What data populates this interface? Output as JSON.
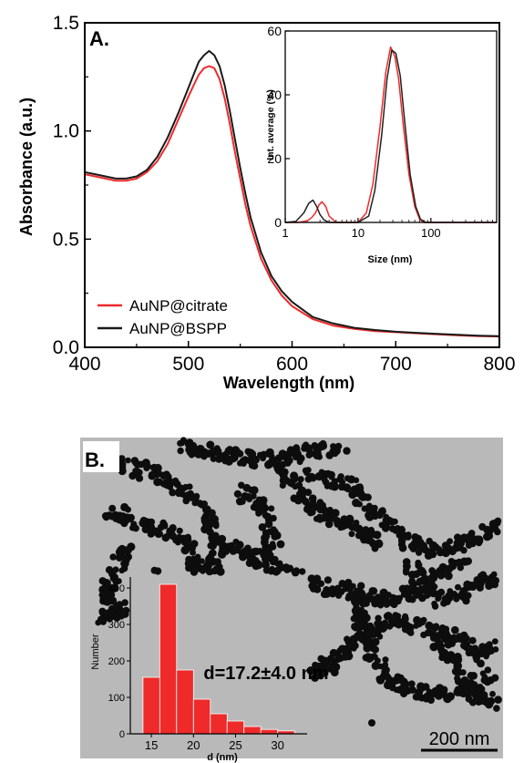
{
  "chart_data": [
    {
      "panel": "A.",
      "type": "line",
      "xlabel": "Wavelength (nm)",
      "ylabel": "Absorbance (a.u.)",
      "xlim": [
        400,
        800
      ],
      "ylim": [
        0,
        1.5
      ],
      "xticks": [
        "400",
        "500",
        "600",
        "700",
        "800"
      ],
      "yticks": [
        "0.0",
        "0.5",
        "1.0",
        "1.5"
      ],
      "legend_position": "bottom-left",
      "series": [
        {
          "name": "AuNP@citrate",
          "color": "#ee2a2a",
          "x": [
            400,
            410,
            420,
            430,
            440,
            450,
            460,
            470,
            480,
            490,
            500,
            505,
            510,
            515,
            520,
            525,
            530,
            535,
            540,
            545,
            550,
            555,
            560,
            570,
            580,
            590,
            600,
            620,
            640,
            660,
            680,
            700,
            720,
            740,
            760,
            780,
            800
          ],
          "y": [
            0.8,
            0.79,
            0.78,
            0.77,
            0.77,
            0.78,
            0.81,
            0.86,
            0.94,
            1.05,
            1.16,
            1.21,
            1.26,
            1.29,
            1.3,
            1.29,
            1.24,
            1.15,
            1.03,
            0.9,
            0.78,
            0.66,
            0.56,
            0.41,
            0.31,
            0.24,
            0.19,
            0.13,
            0.1,
            0.085,
            0.075,
            0.07,
            0.065,
            0.06,
            0.055,
            0.052,
            0.05
          ]
        },
        {
          "name": "AuNP@BSPP",
          "color": "#1a1a1a",
          "x": [
            400,
            410,
            420,
            430,
            440,
            450,
            460,
            470,
            480,
            490,
            500,
            505,
            510,
            515,
            520,
            525,
            530,
            535,
            540,
            545,
            550,
            555,
            560,
            570,
            580,
            590,
            600,
            620,
            640,
            660,
            680,
            700,
            720,
            740,
            760,
            780,
            800
          ],
          "y": [
            0.81,
            0.8,
            0.79,
            0.78,
            0.78,
            0.79,
            0.82,
            0.88,
            0.97,
            1.08,
            1.2,
            1.26,
            1.32,
            1.35,
            1.37,
            1.35,
            1.3,
            1.21,
            1.09,
            0.96,
            0.83,
            0.71,
            0.6,
            0.44,
            0.33,
            0.26,
            0.21,
            0.14,
            0.11,
            0.09,
            0.08,
            0.072,
            0.067,
            0.062,
            0.058,
            0.054,
            0.052
          ]
        }
      ]
    },
    {
      "type": "line",
      "inset_of": "A.",
      "xlabel": "Size (nm)",
      "ylabel": "Int. average (%)",
      "x_scale": "log",
      "xlim": [
        1,
        800
      ],
      "ylim": [
        0,
        60
      ],
      "xticks": [
        "1",
        "10",
        "100"
      ],
      "yticks": [
        "0",
        "20",
        "40",
        "60"
      ],
      "series": [
        {
          "color": "#ee2a2a",
          "x": [
            1,
            1.5,
            2,
            2.3,
            2.6,
            2.9,
            3.2,
            3.6,
            4,
            5,
            7,
            10,
            13,
            16,
            20,
            24,
            28,
            32,
            36,
            42,
            50,
            60,
            70,
            80,
            100,
            800
          ],
          "y": [
            0,
            0,
            0.5,
            1.5,
            3,
            5.5,
            6.5,
            5,
            2,
            0,
            0,
            0,
            3,
            12,
            30,
            47,
            55,
            52,
            45,
            30,
            15,
            5,
            1,
            0,
            0,
            0
          ]
        },
        {
          "color": "#222222",
          "x": [
            1,
            1.4,
            1.8,
            2.1,
            2.4,
            2.7,
            3.0,
            3.4,
            4,
            5,
            7,
            10,
            14,
            17,
            21,
            25,
            29,
            33,
            38,
            44,
            52,
            62,
            72,
            85,
            100,
            800
          ],
          "y": [
            0,
            0.3,
            3,
            6,
            7,
            5,
            2.5,
            0.8,
            0,
            0,
            0,
            0,
            2,
            10,
            27,
            45,
            54,
            53,
            46,
            31,
            15,
            5,
            1,
            0,
            0,
            0
          ]
        }
      ]
    },
    {
      "panel": "B.",
      "type": "bar",
      "xlabel": "d (nm)",
      "ylabel": "Number",
      "xlim": [
        12.5,
        33.5
      ],
      "ylim": [
        0,
        430
      ],
      "xticks": [
        "15",
        "20",
        "25",
        "30"
      ],
      "yticks": [
        "0",
        "100",
        "200",
        "300",
        "400"
      ],
      "color": "#ee2a2a",
      "bins": [
        [
          14,
          16
        ],
        [
          16,
          18
        ],
        [
          18,
          20
        ],
        [
          20,
          22
        ],
        [
          22,
          24
        ],
        [
          24,
          26
        ],
        [
          26,
          28
        ],
        [
          28,
          30
        ],
        [
          30,
          32
        ]
      ],
      "values": [
        155,
        410,
        175,
        95,
        55,
        35,
        20,
        12,
        8
      ],
      "annotation": "d=17.2±4.0 nm",
      "scale_bar": "200 nm"
    }
  ]
}
